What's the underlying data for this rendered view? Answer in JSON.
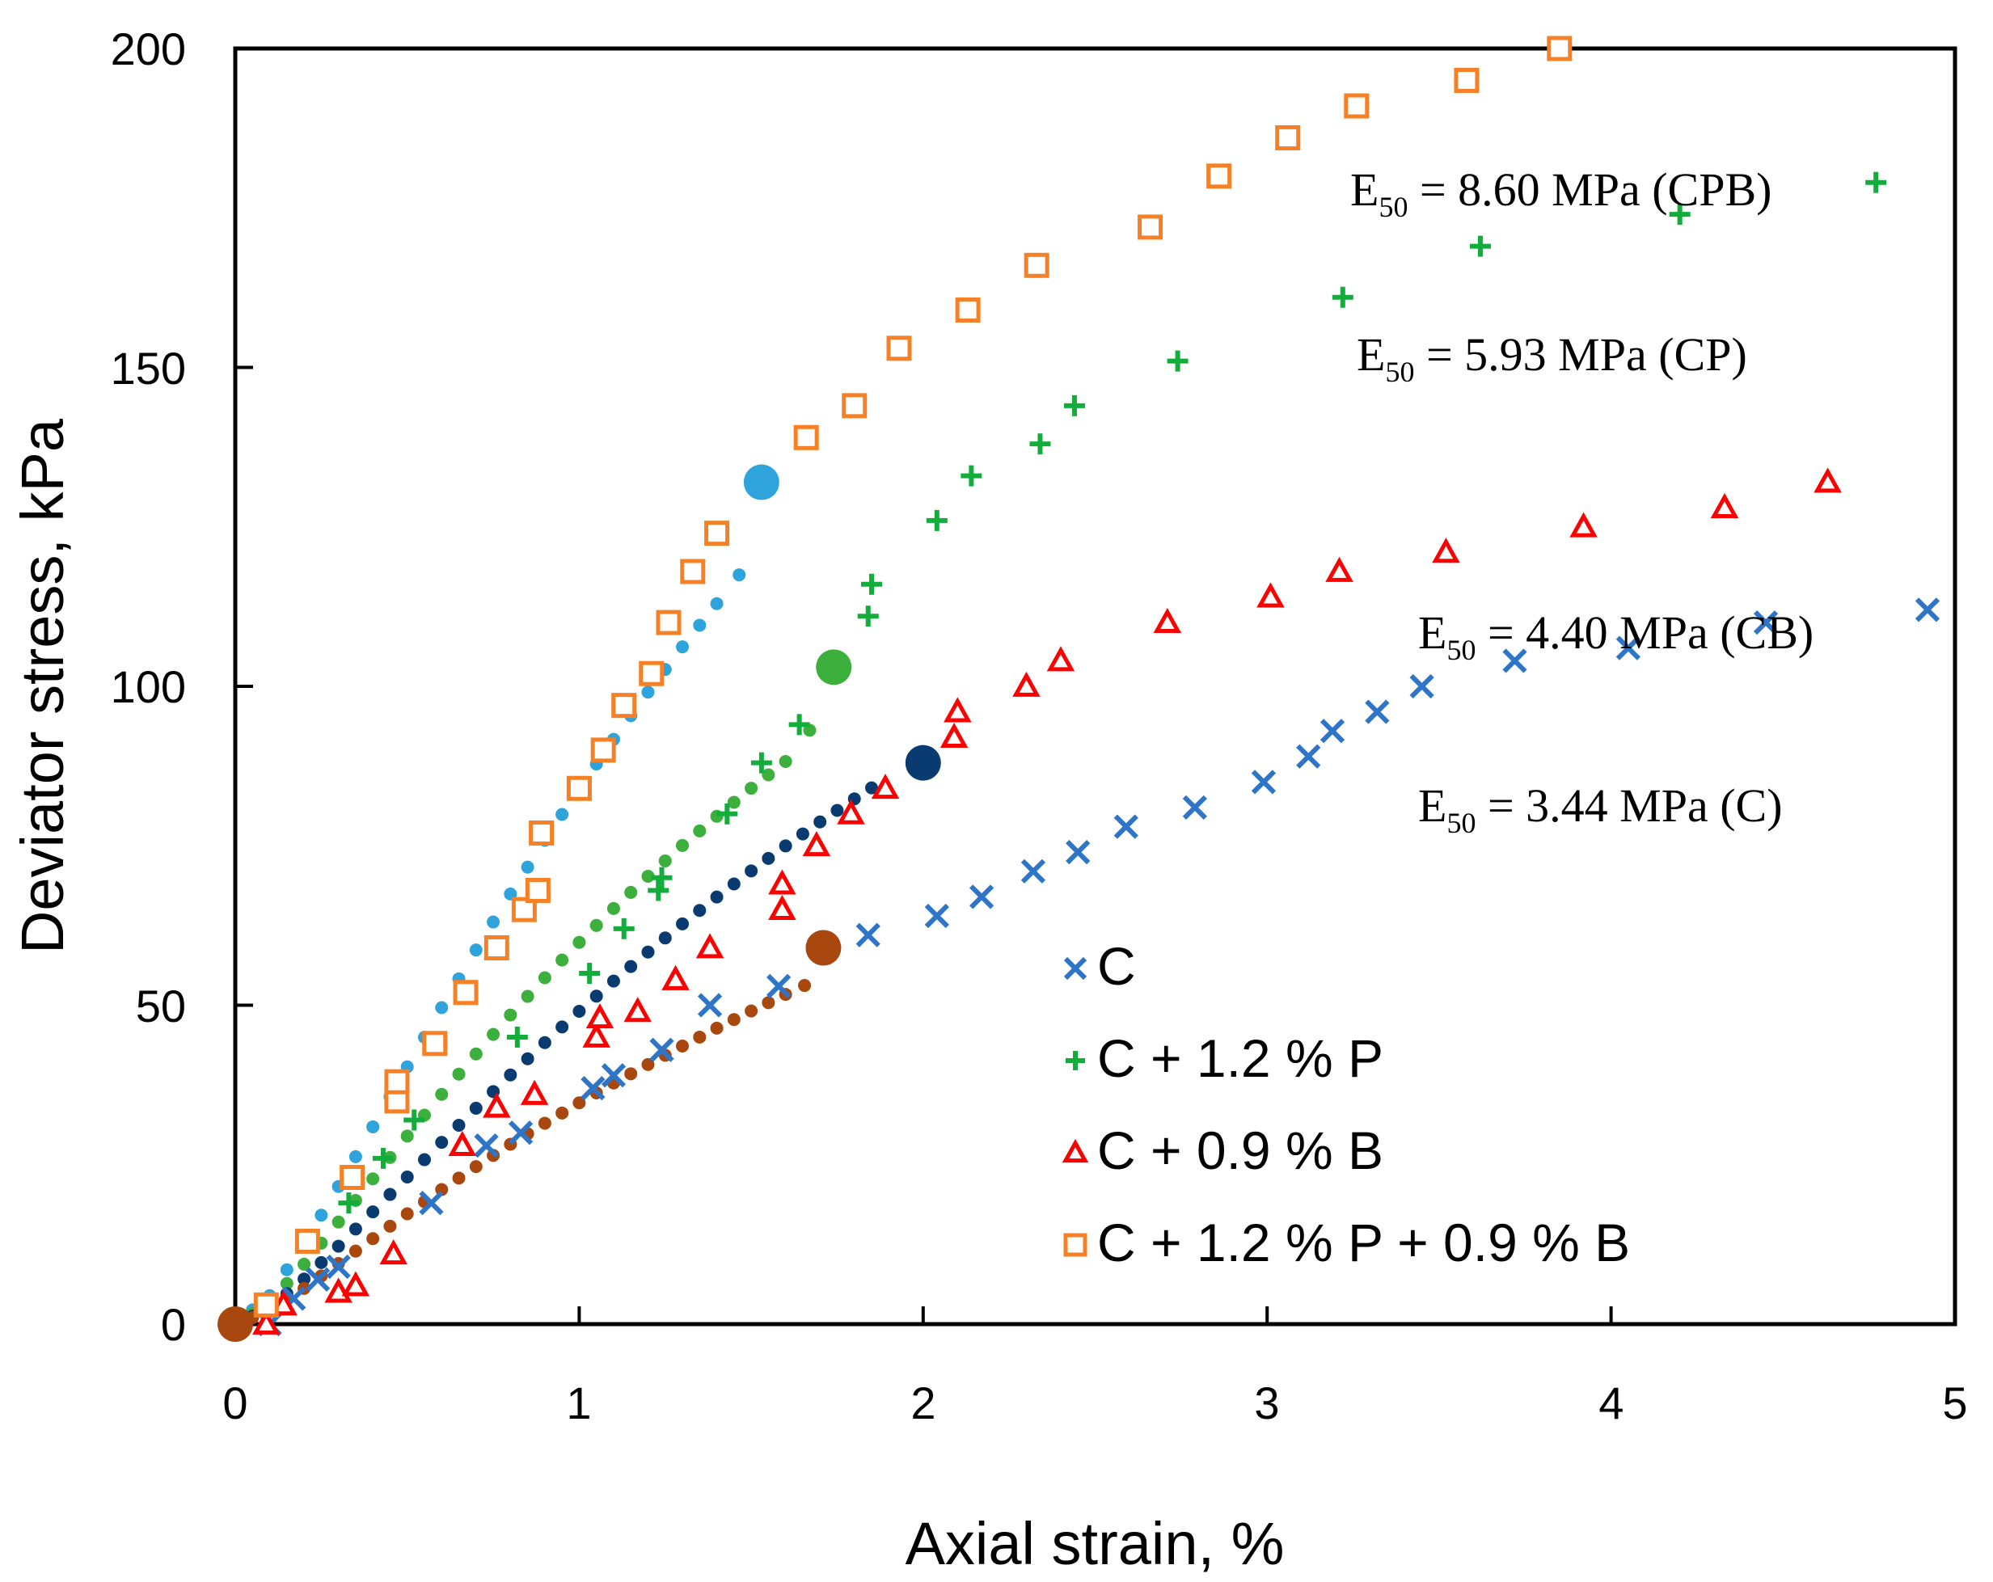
{
  "chart_data": {
    "type": "scatter",
    "title": "",
    "xlabel": "Axial strain, %",
    "ylabel": "Deviator stress, kPa",
    "xlim": [
      0,
      5
    ],
    "ylim": [
      0,
      200
    ],
    "xticks": [
      "0",
      "1",
      "2",
      "3",
      "4",
      "5"
    ],
    "yticks": [
      "0",
      "50",
      "100",
      "150",
      "200"
    ],
    "grid": false,
    "legend_position": "center-bottom",
    "series": [
      {
        "name": "C",
        "marker": "x",
        "color": "#2E75C8",
        "x": [
          0.1,
          0.17,
          0.24,
          0.3,
          0.57,
          0.73,
          0.83,
          1.04,
          1.1,
          1.24,
          1.38,
          1.58,
          1.84,
          2.04,
          2.17,
          2.32,
          2.45,
          2.59,
          2.79,
          2.99,
          3.12,
          3.19,
          3.32,
          3.45,
          3.72,
          4.05,
          4.45,
          4.92
        ],
        "y": [
          0,
          4,
          7,
          9,
          19,
          28,
          30,
          37,
          39,
          43,
          50,
          53,
          61,
          64,
          67,
          71,
          74,
          78,
          81,
          85,
          89,
          93,
          96,
          100,
          104,
          106,
          110,
          112
        ]
      },
      {
        "name": "C + 1.2 % P",
        "marker": "plus",
        "color": "#12AD3A",
        "x": [
          0.33,
          0.43,
          0.52,
          0.82,
          1.03,
          1.13,
          1.23,
          1.24,
          1.43,
          1.53,
          1.64,
          1.84,
          1.85,
          2.04,
          2.14,
          2.34,
          2.44,
          2.74,
          3.22,
          3.62,
          4.2,
          4.77
        ],
        "y": [
          19,
          26,
          32,
          45,
          55,
          62,
          68,
          70,
          80,
          88,
          94,
          111,
          116,
          126,
          133,
          138,
          144,
          151,
          161,
          169,
          174,
          179
        ]
      },
      {
        "name": "C + 0.9 % B",
        "marker": "triangle",
        "color": "#FF0000",
        "x": [
          0.09,
          0.14,
          0.3,
          0.35,
          0.46,
          0.66,
          0.76,
          0.87,
          1.05,
          1.06,
          1.17,
          1.28,
          1.38,
          1.59,
          1.59,
          1.69,
          1.79,
          1.89,
          2.09,
          2.1,
          2.3,
          2.4,
          2.71,
          3.01,
          3.21,
          3.52,
          3.92,
          4.33,
          4.63
        ],
        "y": [
          0,
          3,
          5,
          6,
          11,
          28,
          34,
          36,
          45,
          48,
          49,
          54,
          59,
          65,
          69,
          75,
          80,
          84,
          92,
          96,
          100,
          104,
          110,
          114,
          118,
          121,
          125,
          128,
          132
        ]
      },
      {
        "name": "C + 1.2 % P + 0.9 % B",
        "marker": "square",
        "color": "#F58026",
        "x": [
          0.09,
          0.21,
          0.34,
          0.47,
          0.47,
          0.58,
          0.67,
          0.76,
          0.84,
          0.88,
          0.89,
          1.0,
          1.07,
          1.13,
          1.21,
          1.26,
          1.33,
          1.4,
          1.66,
          1.8,
          1.93,
          2.13,
          2.33,
          2.66,
          2.86,
          3.06,
          3.26,
          3.58,
          3.85
        ],
        "y": [
          3,
          13,
          23,
          35,
          38,
          44,
          52,
          59,
          65,
          68,
          77,
          84,
          90,
          97,
          102,
          110,
          118,
          124,
          139,
          144,
          153,
          159,
          166,
          172,
          180,
          186,
          191,
          195,
          200
        ]
      }
    ],
    "fitted_curves": [
      {
        "name": "CPB fit",
        "color": "#2FA3DC",
        "end_point": [
          1.53,
          132
        ],
        "curve": [
          [
            0.0,
            0
          ],
          [
            0.1,
            4.47
          ],
          [
            0.2,
            12.57
          ],
          [
            0.3,
            21.58
          ],
          [
            0.4,
            30.93
          ],
          [
            0.5,
            40.33
          ],
          [
            0.6,
            49.62
          ],
          [
            0.7,
            58.66
          ],
          [
            0.8,
            67.44
          ],
          [
            0.9,
            75.86
          ],
          [
            1.0,
            83.96
          ],
          [
            1.1,
            91.69
          ],
          [
            1.2,
            99.09
          ],
          [
            1.3,
            106.19
          ],
          [
            1.4,
            112.96
          ],
          [
            1.53,
            122.0
          ]
        ]
      },
      {
        "name": "CP fit",
        "color": "#3DAF3D",
        "end_point": [
          1.74,
          103
        ],
        "curve": [
          [
            0.0,
            0
          ],
          [
            0.1,
            3.36
          ],
          [
            0.2,
            9.39
          ],
          [
            0.3,
            16.01
          ],
          [
            0.4,
            22.78
          ],
          [
            0.5,
            29.49
          ],
          [
            0.6,
            36.03
          ],
          [
            0.7,
            42.37
          ],
          [
            0.8,
            48.47
          ],
          [
            0.9,
            54.31
          ],
          [
            1.0,
            59.86
          ],
          [
            1.1,
            65.16
          ],
          [
            1.2,
            70.22
          ],
          [
            1.3,
            75.04
          ],
          [
            1.4,
            79.62
          ],
          [
            1.5,
            84.02
          ],
          [
            1.6,
            88.22
          ],
          [
            1.74,
            98.0
          ]
        ]
      },
      {
        "name": "CB fit",
        "color": "#0A3B70",
        "end_point": [
          2.0,
          88
        ],
        "curve": [
          [
            0.0,
            0
          ],
          [
            0.1,
            2.5
          ],
          [
            0.2,
            7.07
          ],
          [
            0.3,
            12.22
          ],
          [
            0.4,
            17.6
          ],
          [
            0.5,
            23.07
          ],
          [
            0.6,
            28.5
          ],
          [
            0.7,
            33.85
          ],
          [
            0.8,
            39.07
          ],
          [
            0.9,
            44.14
          ],
          [
            1.0,
            49.05
          ],
          [
            1.1,
            53.79
          ],
          [
            1.2,
            58.34
          ],
          [
            1.3,
            62.75
          ],
          [
            1.4,
            66.97
          ],
          [
            1.5,
            71.06
          ],
          [
            1.6,
            74.98
          ],
          [
            1.7,
            78.74
          ],
          [
            1.8,
            82.35
          ],
          [
            1.9,
            85.8
          ]
        ]
      },
      {
        "name": "C fit",
        "color": "#A8470E",
        "end_point": [
          1.71,
          59
        ],
        "curve": [
          [
            0.0,
            0
          ],
          [
            0.1,
            2.0
          ],
          [
            0.2,
            5.6
          ],
          [
            0.3,
            9.5
          ],
          [
            0.4,
            13.4
          ],
          [
            0.5,
            17.3
          ],
          [
            0.6,
            21.1
          ],
          [
            0.7,
            24.7
          ],
          [
            0.8,
            28.2
          ],
          [
            0.9,
            31.5
          ],
          [
            1.0,
            34.7
          ],
          [
            1.1,
            37.8
          ],
          [
            1.2,
            40.7
          ],
          [
            1.3,
            43.6
          ],
          [
            1.4,
            46.4
          ],
          [
            1.5,
            49.1
          ],
          [
            1.6,
            51.7
          ],
          [
            1.71,
            54.5
          ]
        ]
      }
    ],
    "annotations": [
      {
        "main": "E",
        "sub": "50",
        "rest": " = 8.60 MPa (CPB)"
      },
      {
        "main": "E",
        "sub": "50",
        "rest": " = 5.93 MPa (CP)"
      },
      {
        "main": "E",
        "sub": "50",
        "rest": " = 4.40 MPa (CB)"
      },
      {
        "main": "E",
        "sub": "50",
        "rest": " = 3.44 MPa (C)"
      }
    ],
    "origin_point": [
      0,
      0
    ],
    "origin_color": "#A8470E"
  }
}
